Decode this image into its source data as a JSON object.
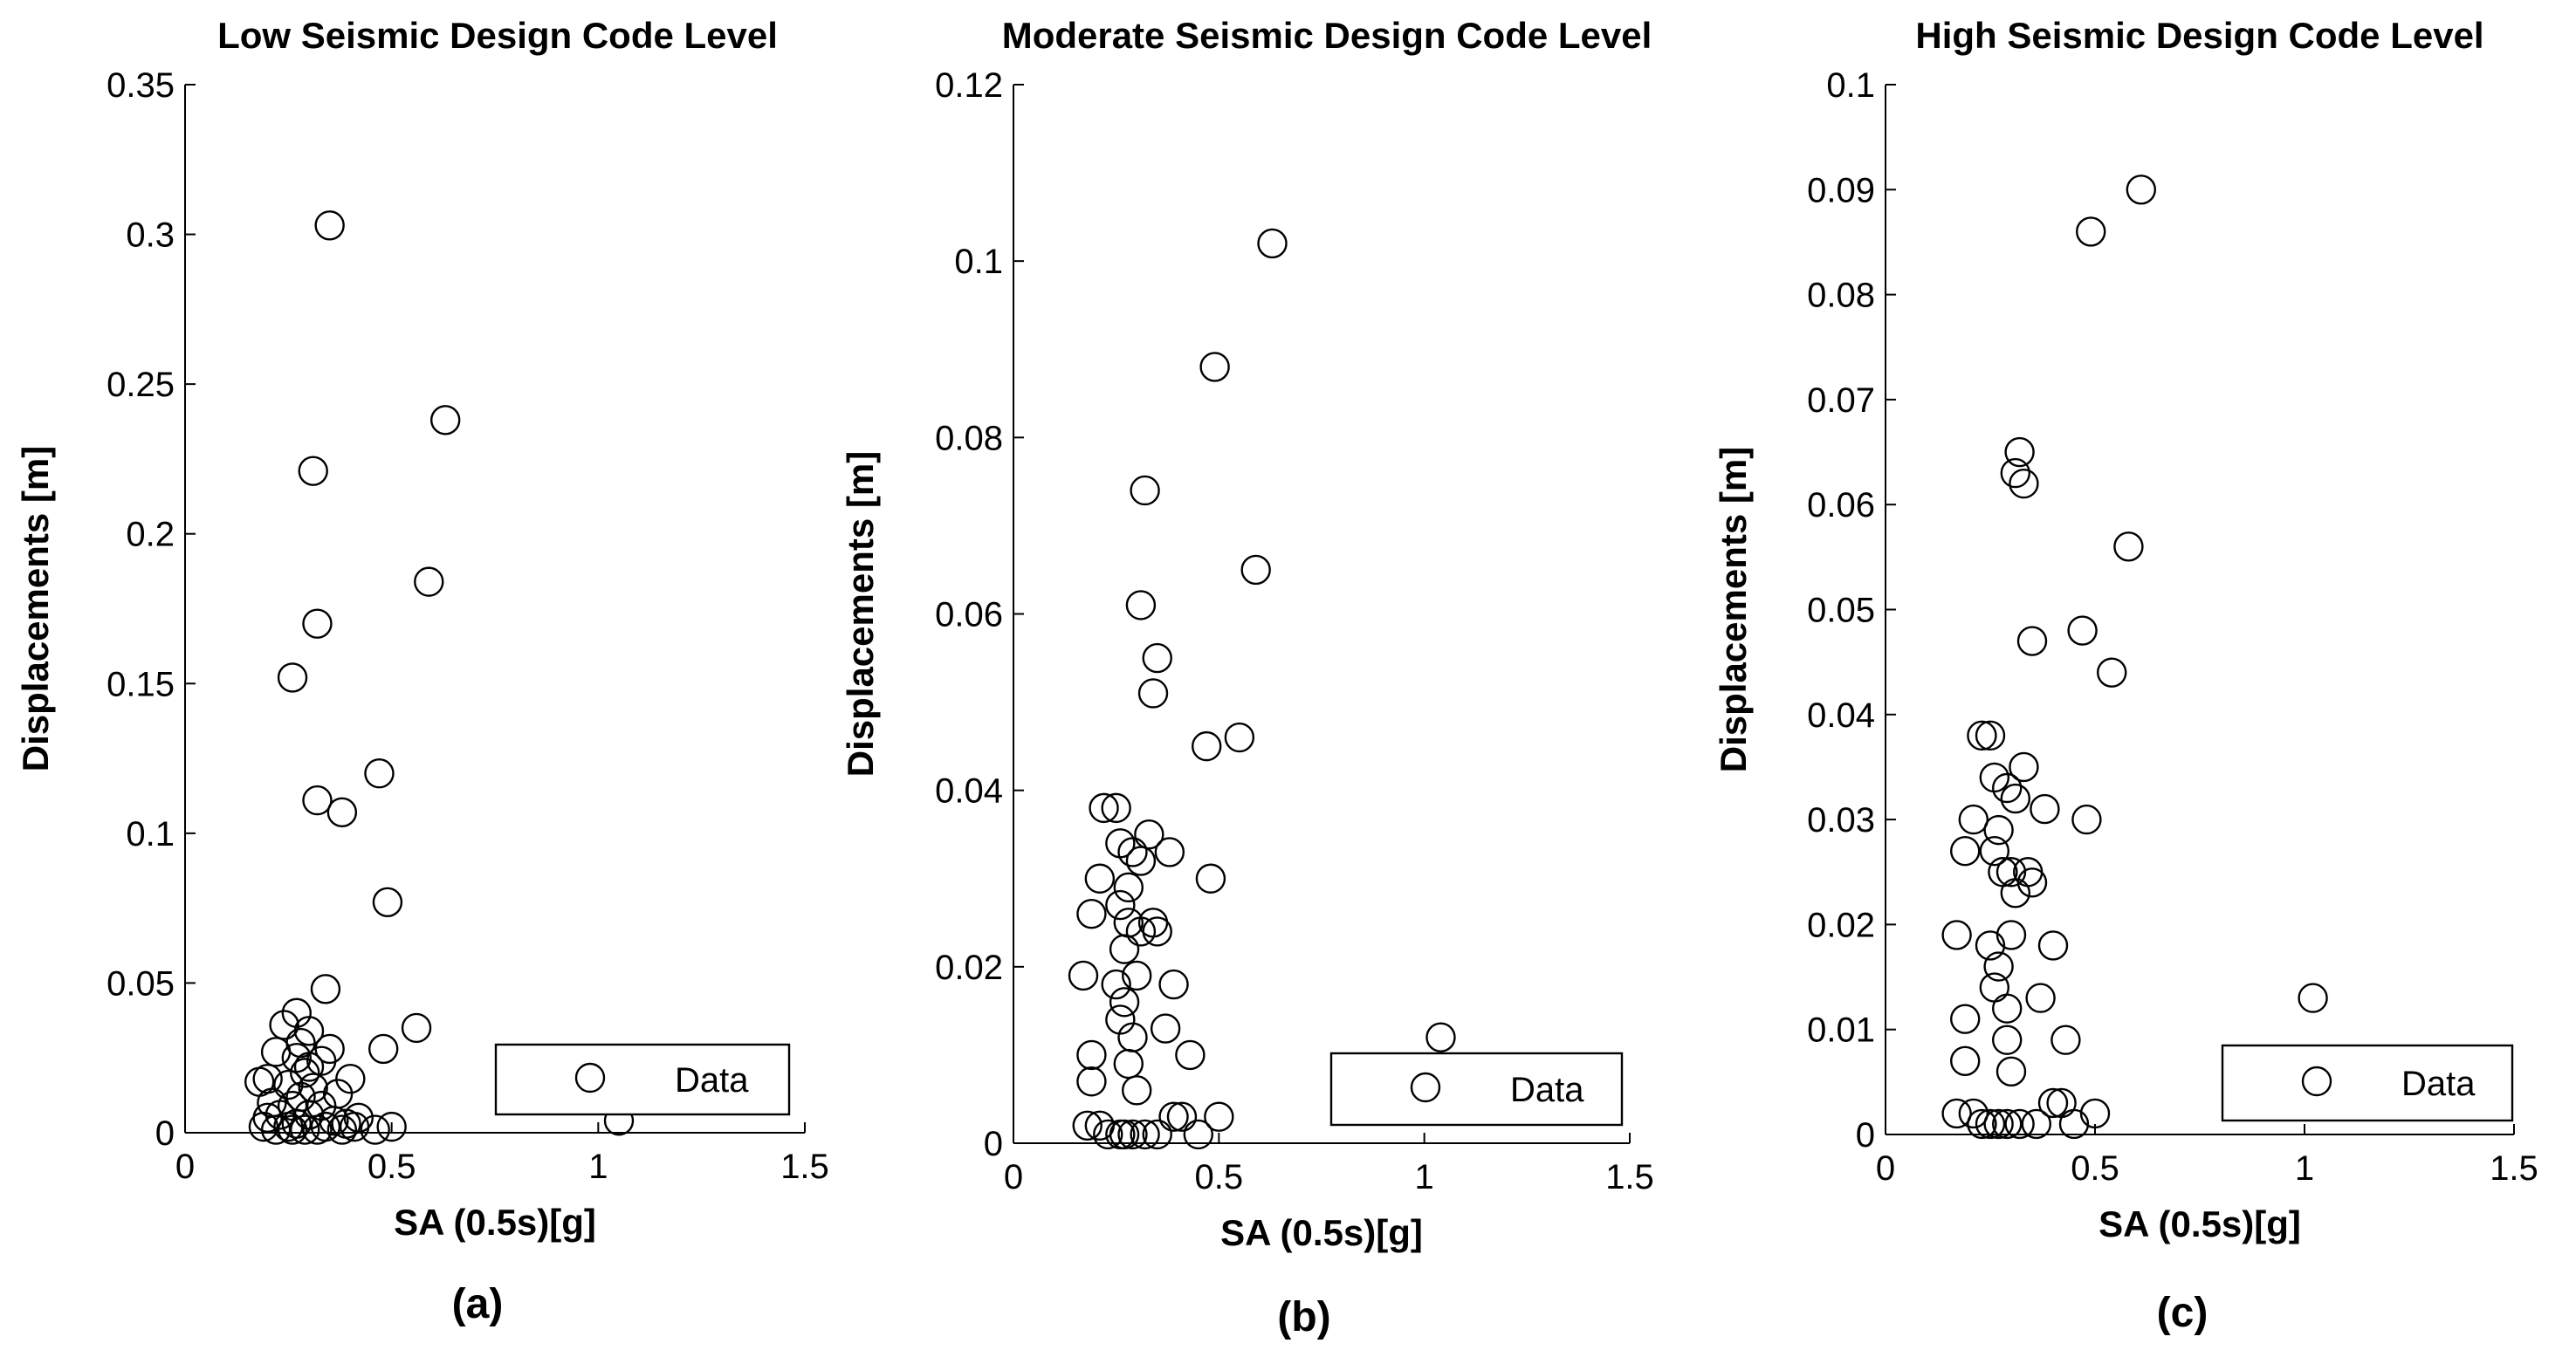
{
  "chart_data": [
    {
      "type": "scatter",
      "panel_label": "(a)",
      "title": "Low Seismic Design Code Level",
      "xlabel": "SA (0.5s)[g]",
      "ylabel": "Displacements [m]",
      "xlim": [
        0,
        1.5
      ],
      "ylim": [
        0,
        0.35
      ],
      "xticks": [
        "0",
        "0.5",
        "1",
        "1.5"
      ],
      "xtick_values": [
        0,
        0.5,
        1,
        1.5
      ],
      "yticks": [
        "0",
        "0.05",
        "0.1",
        "0.15",
        "0.2",
        "0.25",
        "0.3",
        "0.35"
      ],
      "ytick_values": [
        0,
        0.05,
        0.1,
        0.15,
        0.2,
        0.25,
        0.3,
        0.35
      ],
      "legend": "Data",
      "legend_loc": "lower-right",
      "series": [
        {
          "name": "Data",
          "points": [
            [
              0.35,
              0.303
            ],
            [
              0.63,
              0.238
            ],
            [
              0.31,
              0.221
            ],
            [
              0.59,
              0.184
            ],
            [
              0.32,
              0.17
            ],
            [
              0.26,
              0.152
            ],
            [
              0.47,
              0.12
            ],
            [
              0.32,
              0.111
            ],
            [
              0.38,
              0.107
            ],
            [
              0.49,
              0.077
            ],
            [
              0.34,
              0.048
            ],
            [
              0.56,
              0.035
            ],
            [
              0.48,
              0.028
            ],
            [
              0.27,
              0.04
            ],
            [
              0.24,
              0.036
            ],
            [
              0.3,
              0.034
            ],
            [
              0.22,
              0.027
            ],
            [
              0.35,
              0.028
            ],
            [
              0.28,
              0.03
            ],
            [
              0.27,
              0.025
            ],
            [
              0.3,
              0.022
            ],
            [
              0.33,
              0.024
            ],
            [
              0.2,
              0.018
            ],
            [
              0.18,
              0.017
            ],
            [
              0.29,
              0.02
            ],
            [
              0.25,
              0.016
            ],
            [
              0.31,
              0.015
            ],
            [
              0.4,
              0.018
            ],
            [
              0.37,
              0.013
            ],
            [
              0.28,
              0.012
            ],
            [
              0.21,
              0.01
            ],
            [
              0.26,
              0.009
            ],
            [
              0.33,
              0.009
            ],
            [
              0.23,
              0.006
            ],
            [
              0.3,
              0.006
            ],
            [
              0.2,
              0.005
            ],
            [
              0.42,
              0.005
            ],
            [
              0.36,
              0.004
            ],
            [
              0.27,
              0.003
            ],
            [
              0.25,
              0.002
            ],
            [
              0.19,
              0.002
            ],
            [
              0.34,
              0.002
            ],
            [
              0.38,
              0.001
            ],
            [
              0.29,
              0.001
            ],
            [
              0.22,
              0.001
            ],
            [
              0.32,
              0.001
            ],
            [
              0.41,
              0.002
            ],
            [
              0.46,
              0.001
            ],
            [
              0.5,
              0.002
            ],
            [
              1.05,
              0.004
            ],
            [
              0.26,
              0.001
            ],
            [
              0.39,
              0.003
            ]
          ]
        }
      ]
    },
    {
      "type": "scatter",
      "panel_label": "(b)",
      "title": "Moderate Seismic Design Code Level",
      "xlabel": "SA (0.5s)[g]",
      "ylabel": "Displacements [m]",
      "xlim": [
        0,
        1.5
      ],
      "ylim": [
        0,
        0.12
      ],
      "xticks": [
        "0",
        "0.5",
        "1",
        "1.5"
      ],
      "xtick_values": [
        0,
        0.5,
        1,
        1.5
      ],
      "yticks": [
        "0",
        "0.02",
        "0.04",
        "0.06",
        "0.08",
        "0.1",
        "0.12"
      ],
      "ytick_values": [
        0,
        0.02,
        0.04,
        0.06,
        0.08,
        0.1,
        0.12
      ],
      "legend": "Data",
      "legend_loc": "lower-right",
      "series": [
        {
          "name": "Data",
          "points": [
            [
              0.63,
              0.102
            ],
            [
              0.49,
              0.088
            ],
            [
              0.32,
              0.074
            ],
            [
              0.59,
              0.065
            ],
            [
              0.31,
              0.061
            ],
            [
              0.35,
              0.055
            ],
            [
              0.34,
              0.051
            ],
            [
              0.47,
              0.045
            ],
            [
              0.55,
              0.046
            ],
            [
              0.22,
              0.038
            ],
            [
              0.25,
              0.038
            ],
            [
              0.33,
              0.035
            ],
            [
              0.29,
              0.033
            ],
            [
              0.31,
              0.032
            ],
            [
              0.38,
              0.033
            ],
            [
              0.26,
              0.034
            ],
            [
              0.48,
              0.03
            ],
            [
              0.21,
              0.03
            ],
            [
              0.28,
              0.029
            ],
            [
              0.26,
              0.027
            ],
            [
              0.19,
              0.026
            ],
            [
              0.34,
              0.025
            ],
            [
              0.31,
              0.024
            ],
            [
              0.35,
              0.024
            ],
            [
              0.28,
              0.025
            ],
            [
              0.27,
              0.022
            ],
            [
              0.17,
              0.019
            ],
            [
              0.3,
              0.019
            ],
            [
              0.25,
              0.018
            ],
            [
              0.39,
              0.018
            ],
            [
              0.27,
              0.016
            ],
            [
              0.26,
              0.014
            ],
            [
              0.37,
              0.013
            ],
            [
              0.29,
              0.012
            ],
            [
              0.19,
              0.01
            ],
            [
              0.43,
              0.01
            ],
            [
              0.28,
              0.009
            ],
            [
              0.19,
              0.007
            ],
            [
              0.3,
              0.006
            ],
            [
              1.04,
              0.012
            ],
            [
              0.41,
              0.003
            ],
            [
              0.39,
              0.003
            ],
            [
              0.5,
              0.003
            ],
            [
              0.18,
              0.002
            ],
            [
              0.21,
              0.002
            ],
            [
              0.26,
              0.001
            ],
            [
              0.29,
              0.001
            ],
            [
              0.32,
              0.001
            ],
            [
              0.35,
              0.001
            ],
            [
              0.45,
              0.001
            ],
            [
              0.23,
              0.001
            ],
            [
              0.27,
              0.001
            ]
          ]
        }
      ]
    },
    {
      "type": "scatter",
      "panel_label": "(c)",
      "title": "High Seismic Design Code Level",
      "xlabel": "SA (0.5s)[g]",
      "ylabel": "Displacements [m]",
      "xlim": [
        0,
        1.5
      ],
      "ylim": [
        0,
        0.1
      ],
      "xticks": [
        "0",
        "0.5",
        "1",
        "1.5"
      ],
      "xtick_values": [
        0,
        0.5,
        1,
        1.5
      ],
      "yticks": [
        "0",
        "0.01",
        "0.02",
        "0.03",
        "0.04",
        "0.05",
        "0.06",
        "0.07",
        "0.08",
        "0.09",
        "0.1"
      ],
      "ytick_values": [
        0,
        0.01,
        0.02,
        0.03,
        0.04,
        0.05,
        0.06,
        0.07,
        0.08,
        0.09,
        0.1
      ],
      "legend": "Data",
      "legend_loc": "lower-right",
      "series": [
        {
          "name": "Data",
          "points": [
            [
              0.61,
              0.09
            ],
            [
              0.49,
              0.086
            ],
            [
              0.32,
              0.065
            ],
            [
              0.31,
              0.063
            ],
            [
              0.33,
              0.062
            ],
            [
              0.58,
              0.056
            ],
            [
              0.47,
              0.048
            ],
            [
              0.35,
              0.047
            ],
            [
              0.54,
              0.044
            ],
            [
              0.23,
              0.038
            ],
            [
              0.25,
              0.038
            ],
            [
              0.33,
              0.035
            ],
            [
              0.26,
              0.034
            ],
            [
              0.29,
              0.033
            ],
            [
              0.31,
              0.032
            ],
            [
              0.38,
              0.031
            ],
            [
              0.48,
              0.03
            ],
            [
              0.21,
              0.03
            ],
            [
              0.27,
              0.029
            ],
            [
              0.26,
              0.027
            ],
            [
              0.19,
              0.027
            ],
            [
              0.34,
              0.025
            ],
            [
              0.3,
              0.025
            ],
            [
              0.35,
              0.024
            ],
            [
              0.28,
              0.025
            ],
            [
              0.31,
              0.023
            ],
            [
              0.17,
              0.019
            ],
            [
              0.3,
              0.019
            ],
            [
              0.25,
              0.018
            ],
            [
              0.4,
              0.018
            ],
            [
              0.27,
              0.016
            ],
            [
              0.26,
              0.014
            ],
            [
              0.37,
              0.013
            ],
            [
              0.29,
              0.012
            ],
            [
              0.19,
              0.011
            ],
            [
              0.43,
              0.009
            ],
            [
              0.29,
              0.009
            ],
            [
              0.19,
              0.007
            ],
            [
              0.3,
              0.006
            ],
            [
              1.02,
              0.013
            ],
            [
              0.4,
              0.003
            ],
            [
              0.42,
              0.003
            ],
            [
              0.5,
              0.002
            ],
            [
              0.17,
              0.002
            ],
            [
              0.21,
              0.002
            ],
            [
              0.25,
              0.001
            ],
            [
              0.29,
              0.001
            ],
            [
              0.32,
              0.001
            ],
            [
              0.36,
              0.001
            ],
            [
              0.45,
              0.001
            ],
            [
              0.23,
              0.001
            ],
            [
              0.27,
              0.001
            ]
          ]
        }
      ]
    }
  ]
}
